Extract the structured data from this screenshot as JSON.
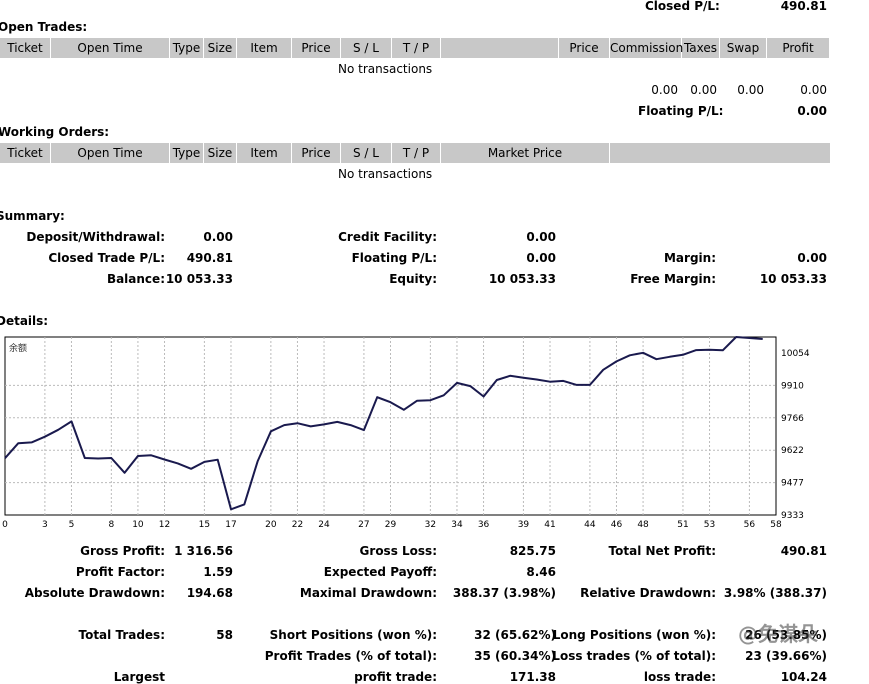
{
  "top": {
    "closed_pl_label": "Closed P/L:",
    "closed_pl_value": "490.81"
  },
  "open_trades": {
    "title": "Open Trades:",
    "columns": [
      "Ticket",
      "Open Time",
      "Type",
      "Size",
      "Item",
      "Price",
      "S / L",
      "T / P",
      "",
      "Price",
      "Commission",
      "Taxes",
      "Swap",
      "Profit"
    ],
    "empty_text": "No transactions",
    "totals": [
      "0.00",
      "0.00",
      "0.00",
      "0.00"
    ],
    "floating_label": "Floating P/L:",
    "floating_value": "0.00"
  },
  "working_orders": {
    "title": "Working Orders:",
    "columns": [
      "Ticket",
      "Open Time",
      "Type",
      "Size",
      "Item",
      "Price",
      "S / L",
      "T / P",
      "Market Price",
      ""
    ],
    "empty_text": "No transactions"
  },
  "summary": {
    "title": "Summary:",
    "deposit_label": "Deposit/Withdrawal:",
    "deposit_value": "0.00",
    "credit_label": "Credit Facility:",
    "credit_value": "0.00",
    "closed_label": "Closed Trade P/L:",
    "closed_value": "490.81",
    "floating_label": "Floating P/L:",
    "floating_value": "0.00",
    "margin_label": "Margin:",
    "margin_value": "0.00",
    "balance_label": "Balance:",
    "balance_value": "10 053.33",
    "equity_label": "Equity:",
    "equity_value": "10 053.33",
    "free_margin_label": "Free Margin:",
    "free_margin_value": "10 053.33"
  },
  "details": {
    "title": "Details:"
  },
  "chart_data": {
    "type": "line",
    "title": "余额",
    "x_ticks": [
      "0",
      "3",
      "5",
      "8",
      "10",
      "12",
      "15",
      "17",
      "20",
      "22",
      "24",
      "27",
      "29",
      "32",
      "34",
      "36",
      "39",
      "41",
      "44",
      "46",
      "48",
      "51",
      "53",
      "56",
      "58"
    ],
    "y_ticks": [
      "10054",
      "9910",
      "9766",
      "9622",
      "9477",
      "9333"
    ],
    "ylim": [
      9333,
      10054
    ],
    "xlim": [
      0,
      58
    ],
    "grid": true,
    "line_color": "#1a1a4e",
    "series": [
      {
        "values": [
          [
            0,
            9563
          ],
          [
            1,
            9624
          ],
          [
            2,
            9627
          ],
          [
            3,
            9650
          ],
          [
            4,
            9678
          ],
          [
            5,
            9712
          ],
          [
            6,
            9564
          ],
          [
            7,
            9562
          ],
          [
            8,
            9564
          ],
          [
            9,
            9504
          ],
          [
            10,
            9572
          ],
          [
            11,
            9575
          ],
          [
            12,
            9558
          ],
          [
            13,
            9542
          ],
          [
            14,
            9520
          ],
          [
            15,
            9548
          ],
          [
            16,
            9557
          ],
          [
            17,
            9356
          ],
          [
            18,
            9376
          ],
          [
            19,
            9550
          ],
          [
            20,
            9672
          ],
          [
            21,
            9697
          ],
          [
            22,
            9705
          ],
          [
            23,
            9692
          ],
          [
            24,
            9700
          ],
          [
            25,
            9710
          ],
          [
            26,
            9697
          ],
          [
            27,
            9677
          ],
          [
            28,
            9810
          ],
          [
            29,
            9790
          ],
          [
            30,
            9759
          ],
          [
            31,
            9796
          ],
          [
            32,
            9798
          ],
          [
            33,
            9818
          ],
          [
            34,
            9868
          ],
          [
            35,
            9855
          ],
          [
            36,
            9813
          ],
          [
            37,
            9880
          ],
          [
            38,
            9897
          ],
          [
            39,
            9889
          ],
          [
            40,
            9882
          ],
          [
            41,
            9873
          ],
          [
            42,
            9876
          ],
          [
            43,
            9860
          ],
          [
            44,
            9860
          ],
          [
            45,
            9921
          ],
          [
            46,
            9955
          ],
          [
            47,
            9980
          ],
          [
            48,
            9990
          ],
          [
            49,
            9964
          ],
          [
            50,
            9974
          ],
          [
            51,
            9982
          ],
          [
            52,
            10001
          ],
          [
            53,
            10002
          ],
          [
            54,
            10000
          ],
          [
            55,
            10054
          ],
          [
            56,
            10050
          ],
          [
            57,
            10046
          ]
        ]
      }
    ]
  },
  "stats": {
    "gross_profit_label": "Gross Profit:",
    "gross_profit_value": "1 316.56",
    "gross_loss_label": "Gross Loss:",
    "gross_loss_value": "825.75",
    "total_net_label": "Total Net Profit:",
    "total_net_value": "490.81",
    "profit_factor_label": "Profit Factor:",
    "profit_factor_value": "1.59",
    "expected_payoff_label": "Expected Payoff:",
    "expected_payoff_value": "8.46",
    "abs_drawdown_label": "Absolute Drawdown:",
    "abs_drawdown_value": "194.68",
    "max_drawdown_label": "Maximal Drawdown:",
    "max_drawdown_value": "388.37 (3.98%)",
    "rel_drawdown_label": "Relative Drawdown:",
    "rel_drawdown_value": "3.98% (388.37)",
    "total_trades_label": "Total Trades:",
    "total_trades_value": "58",
    "short_label": "Short Positions (won %):",
    "short_value": "32 (65.62%)",
    "long_label": "Long Positions (won %):",
    "long_value": "26 (53.85%)",
    "profit_trades_label": "Profit Trades (% of total):",
    "profit_trades_value": "35 (60.34%)",
    "loss_trades_label": "Loss trades (% of total):",
    "loss_trades_value": "23 (39.66%)",
    "largest_label": "Largest",
    "profit_trade_label": "profit trade:",
    "profit_trade_value": "171.38",
    "loss_trade_label": "loss trade:",
    "loss_trade_value": "104.24"
  },
  "watermark": {
    "text": "@免谋朵"
  }
}
